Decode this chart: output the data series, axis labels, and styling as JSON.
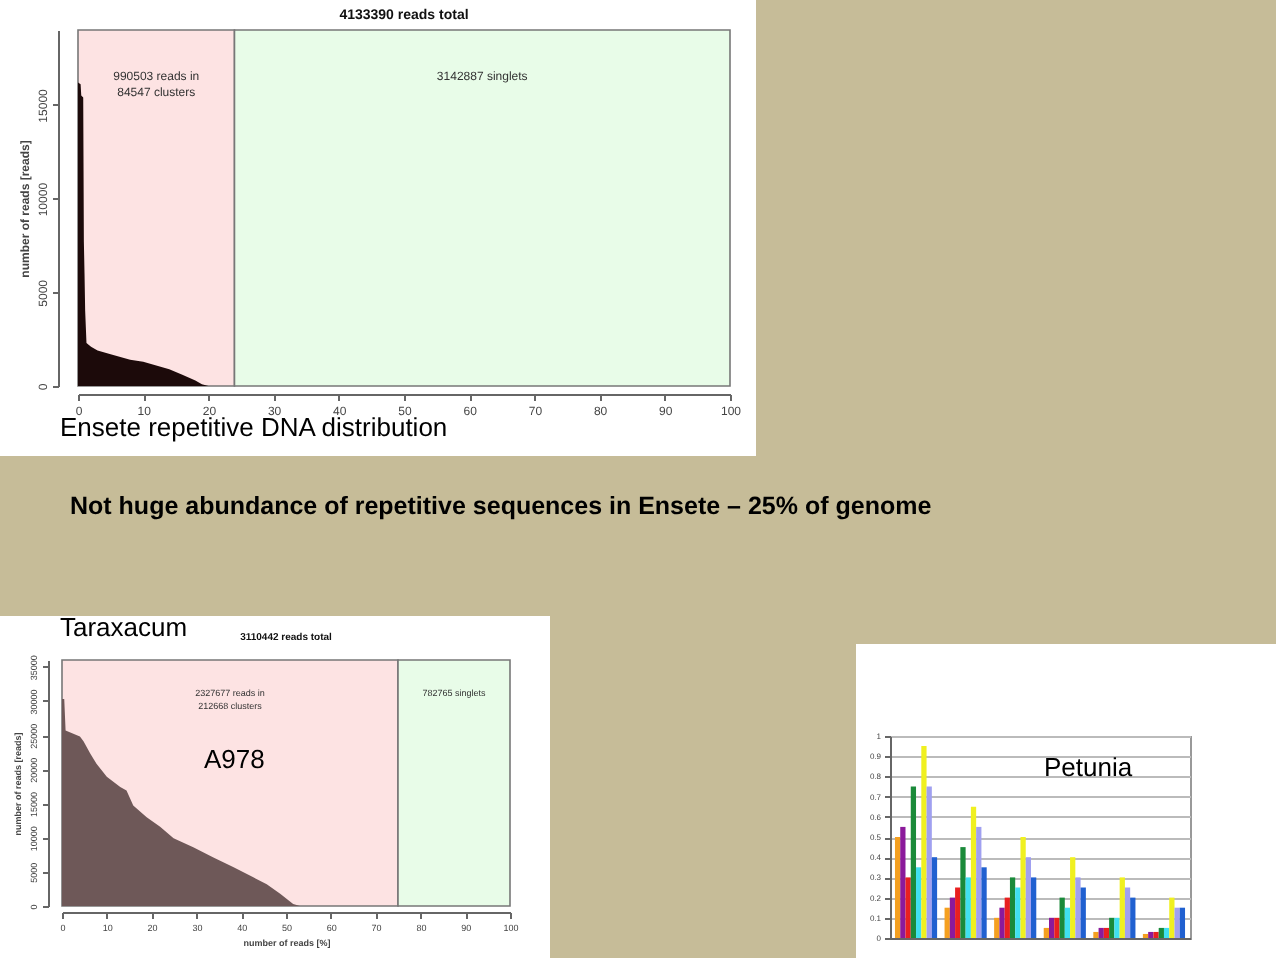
{
  "chart_data": [
    {
      "type": "area",
      "title": "4133390 reads total",
      "ylabel": "number of reads [reads]",
      "x": [
        0,
        0.4,
        0.5,
        0.8,
        0.9,
        1,
        1.1,
        1.3,
        2,
        3,
        5,
        8,
        10,
        12,
        14,
        16,
        18,
        19,
        20
      ],
      "values": [
        16200,
        16100,
        15500,
        15400,
        7700,
        6000,
        4000,
        2300,
        2100,
        1900,
        1700,
        1400,
        1300,
        1100,
        900,
        600,
        300,
        100,
        0
      ],
      "color": "#1c0a0a",
      "xlim": [
        0,
        100
      ],
      "xticks": [
        0,
        10,
        20,
        30,
        40,
        50,
        60,
        70,
        80,
        90,
        100
      ],
      "ylim": [
        0,
        19000
      ],
      "yticks": [
        0,
        5000,
        10000,
        15000
      ],
      "bands": [
        {
          "axis": "x",
          "from": 0,
          "to": 24,
          "label": "990503 reads in\n84547 clusters",
          "color": "#fde3e3"
        },
        {
          "axis": "x",
          "from": 24,
          "to": 100,
          "label": "3142887 singlets",
          "color": "#e8fce8"
        }
      ],
      "annotations": [
        "Ensete repetitive DNA distribution",
        "Not huge abundance of repetitive sequences in Ensete – 25% of genome"
      ]
    },
    {
      "type": "area",
      "title": "3110442 reads total",
      "xlabel": "number of reads [%]",
      "ylabel": "number of reads [reads]",
      "x": [
        0,
        0.5,
        0.8,
        4,
        4.8,
        6.3,
        7.7,
        10,
        13,
        14.4,
        15.9,
        18.9,
        21.9,
        24.9,
        29.3,
        33.8,
        38.2,
        42.7,
        45.7,
        48.7,
        51.6,
        53.1
      ],
      "values": [
        30300,
        30300,
        25700,
        24800,
        24100,
        22300,
        20800,
        18900,
        17400,
        16900,
        14700,
        13000,
        11600,
        9900,
        8600,
        7100,
        5700,
        4200,
        3200,
        1800,
        300,
        0
      ],
      "color": "#6e5858",
      "xlim": [
        0,
        100
      ],
      "xticks": [
        0,
        10,
        20,
        30,
        40,
        50,
        60,
        70,
        80,
        90,
        100
      ],
      "ylim": [
        0,
        36000
      ],
      "yticks": [
        0,
        5000,
        10000,
        15000,
        20000,
        25000,
        30000,
        35000
      ],
      "bands": [
        {
          "axis": "x",
          "from": 0,
          "to": 75,
          "label": "2327677 reads in\n212668 clusters",
          "color": "#fde3e3"
        },
        {
          "axis": "x",
          "from": 75,
          "to": 100,
          "label": "782765 singlets",
          "color": "#e8fce8"
        }
      ],
      "annotations": [
        "Taraxacum",
        "A978"
      ]
    },
    {
      "type": "bar",
      "categories": [
        null,
        null,
        null,
        null,
        null,
        null
      ],
      "series": [
        {
          "color": "#f5a020",
          "values": [
            0.5,
            0.15,
            0.1,
            0.05,
            0.03,
            0.02
          ]
        },
        {
          "color": "#8b1a9b",
          "values": [
            0.55,
            0.2,
            0.15,
            0.1,
            0.05,
            0.03
          ]
        },
        {
          "color": "#e82020",
          "values": [
            0.3,
            0.25,
            0.2,
            0.1,
            0.05,
            0.03
          ]
        },
        {
          "color": "#1a8a3a",
          "values": [
            0.75,
            0.45,
            0.3,
            0.2,
            0.1,
            0.05
          ]
        },
        {
          "color": "#40e0f0",
          "values": [
            0.35,
            0.3,
            0.25,
            0.15,
            0.1,
            0.05
          ]
        },
        {
          "color": "#f0f020",
          "values": [
            0.95,
            0.65,
            0.5,
            0.4,
            0.3,
            0.2
          ]
        },
        {
          "color": "#a0a0f0",
          "values": [
            0.75,
            0.55,
            0.4,
            0.3,
            0.25,
            0.15
          ]
        },
        {
          "color": "#2060d0",
          "values": [
            0.4,
            0.35,
            0.3,
            0.25,
            0.2,
            0.15
          ]
        }
      ],
      "ylim": [
        0,
        1
      ],
      "yticks": [
        0,
        0.1,
        0.2,
        0.3,
        0.4,
        0.5,
        0.6,
        0.7,
        0.8,
        0.9,
        1
      ],
      "grid": "y",
      "annotations": [
        "Petunia"
      ]
    }
  ]
}
